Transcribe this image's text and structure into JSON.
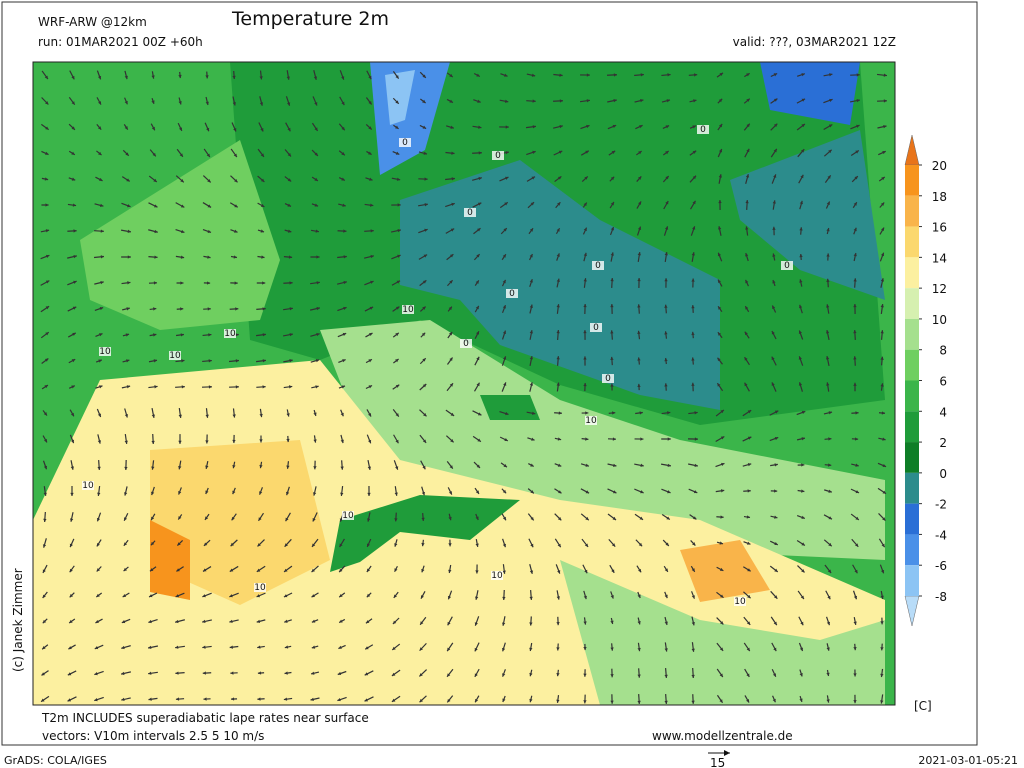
{
  "header": {
    "model": "WRF-ARW @12km",
    "title": "Temperature 2m",
    "run": "run: 01MAR2021 00Z +60h",
    "valid": "valid: ???, 03MAR2021 12Z"
  },
  "credit": "(c) Janek Zimmer",
  "colorbar": {
    "ticks": [
      20,
      18,
      16,
      14,
      12,
      10,
      8,
      6,
      4,
      2,
      0,
      -2,
      -4,
      -6,
      -8
    ],
    "colors": [
      "#f7941d",
      "#f9b44a",
      "#fbd86e",
      "#fcf0a0",
      "#d6f0b0",
      "#a5e08e",
      "#6fcf60",
      "#3bb54a",
      "#1f9c3a",
      "#0e7e27",
      "#2c8c8c",
      "#2a6fd6",
      "#4a90e8",
      "#8cc4f4"
    ],
    "over_color": "#e8741a",
    "under_color": "#b8dcf8",
    "unit": "[C]"
  },
  "map": {
    "contour_labels": [
      0,
      0,
      0,
      0,
      0,
      0,
      0,
      0,
      0,
      0,
      10,
      10,
      10,
      10,
      10,
      10,
      10,
      10,
      10,
      10
    ]
  },
  "footer": {
    "note": "T2m INCLUDES superadiabatic lape rates near surface",
    "vectors": "vectors: V10m intervals 2.5 5 10 m/s",
    "website": "www.modellzentrale.de",
    "software": "GrADS: COLA/IGES",
    "reference_vector": 15,
    "timestamp": "2021-03-01-05:21"
  }
}
